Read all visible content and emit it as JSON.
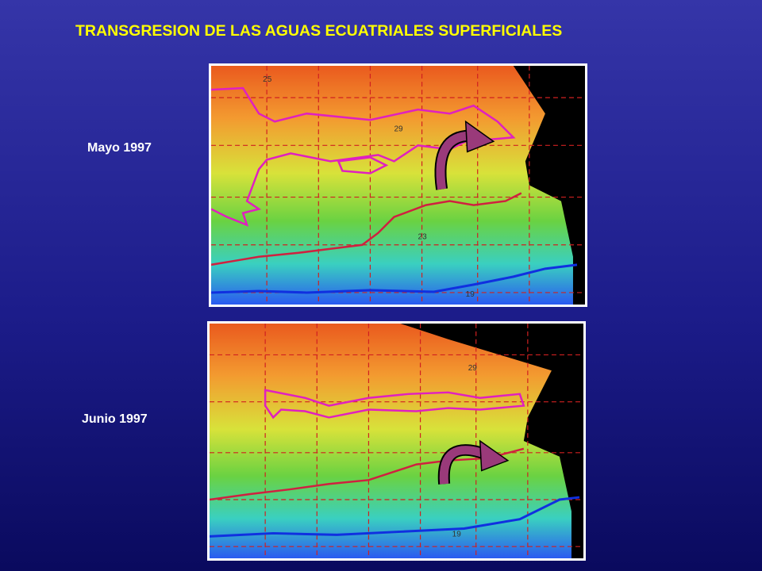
{
  "header": {
    "title": "TRANSGRESION DE LAS AGUAS ECUATRIALES SUPERFICIALES"
  },
  "maps": [
    {
      "label": "Mayo 1997",
      "contour_labels": [
        "25",
        "29",
        "23",
        "19"
      ]
    },
    {
      "label": "Junio 1997",
      "contour_labels": [
        "29",
        "19"
      ]
    }
  ]
}
